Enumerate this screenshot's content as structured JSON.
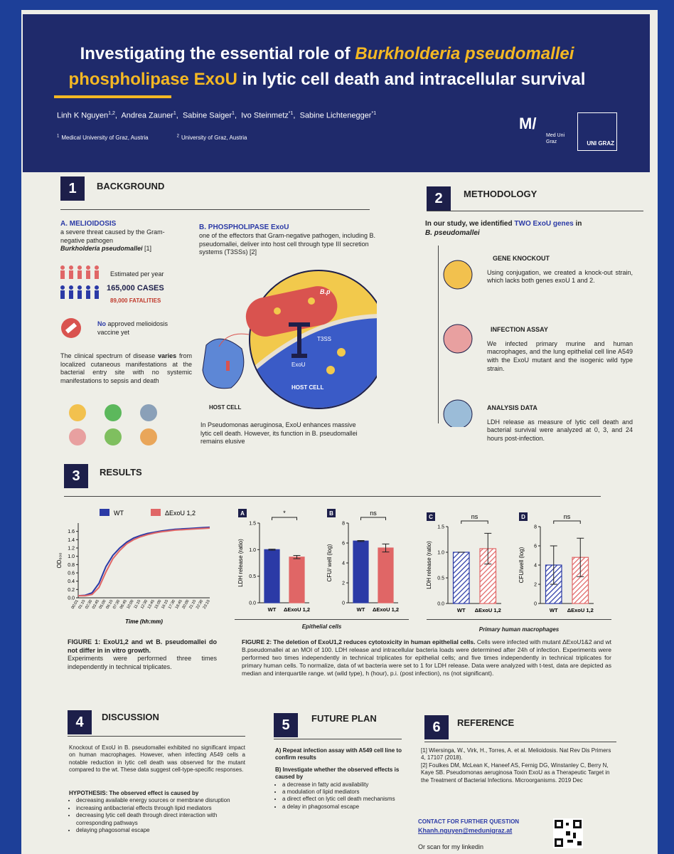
{
  "header": {
    "title_a": "Investigating the essential role of ",
    "title_b": "Burkholderia pseudomallei",
    "title_c": "phospholipase ExoU",
    "title_d": " in lytic cell death and intracellular survival",
    "authors": [
      {
        "name": "Linh K Nguyen",
        "sup": "1,2"
      },
      {
        "name": "Andrea Zauner",
        "sup": "1"
      },
      {
        "name": "Sabine Saiger",
        "sup": "1"
      },
      {
        "name": "Ivo Steinmetz",
        "sup": "*1"
      },
      {
        "name": "Sabine Lichtenegger",
        "sup": "*1"
      }
    ],
    "affiliations": [
      {
        "sup": "1",
        "text": "Medical University of Graz, Austria"
      },
      {
        "sup": "2",
        "text": "University of Graz, Austria"
      }
    ],
    "logos": [
      "Med Uni Graz",
      "UNI GRAZ"
    ]
  },
  "background": {
    "number": "1",
    "heading": "BACKGROUND",
    "a_title": "A. MELIOIDOSIS",
    "a_text": "a severe threat caused by the Gram-negative pathogen",
    "a_pathogen": "Burkholderia pseudomallei",
    "a_ref": " [1]",
    "estimate": "Estimated per year",
    "cases": "165,000 CASES",
    "fatalities": "89,000 FATALITIES",
    "vaccine_no": "No",
    "vaccine_rest": " approved melioidosis vaccine yet",
    "spectrum_1": "The clinical spectrum of disease ",
    "spectrum_bold": "varies",
    "spectrum_2": " from localized cutaneous manifestations at the bacterial entry site with no systemic manifestations to sepsis and death",
    "b_title": "B. PHOSPHOLIPASE ExoU",
    "b_text": "one of the effectors that Gram-negative pathogen, including B. pseudomallei, deliver into host cell through type III secretion systems (T3SSs) [2]",
    "fig_labels": [
      "B.p",
      "T3SS",
      "ExoU",
      "HOST CELL",
      "HOST CELL"
    ],
    "b_caption": "In Pseudomonas aeruginosa, ExoU enhances massive lytic cell death. However, its function in B. pseudomallei remains elusive"
  },
  "methodology": {
    "number": "2",
    "heading": "METHODOLOGY",
    "intro_1": "In our study, we identified ",
    "intro_hl": "TWO ExoU genes",
    "intro_2": " in ",
    "intro_3": "B. pseudomallei",
    "steps": [
      {
        "title": "GENE KNOCKOUT",
        "text": "Using conjugation, we created a knock-out strain, which lacks both genes exoU 1 and 2."
      },
      {
        "title": "INFECTION ASSAY",
        "text": "We infected primary murine and human macrophages, and the lung epithelial cell line A549 with the ExoU mutant and the isogenic wild type strain."
      },
      {
        "title": "ANALYSIS DATA",
        "text": "LDH release as measure of lytic cell death and bacterial survival were analyzed at 0, 3, and 24 hours post-infection."
      }
    ]
  },
  "results": {
    "number": "3",
    "heading": "RESULTS",
    "group_epithelial": "Epithelial cells",
    "group_macrophages": "Primary human macrophages",
    "fig1_title": "FIGURE 1: ExoU1,2 and wt B. pseudomallei do not differ in in vitro growth.",
    "fig1_text": "Experiments were performed three times independently in technical triplicates.",
    "fig2_title": "FIGURE 2: The deletion of ExoU1,2 reduces cytotoxicity in human epithelial cells.",
    "fig2_text": " Cells were infected with mutant ΔExoU1&2 and wt B.pseudomallei at an MOI of 100. LDH release and intracellular bacteria loads were determined after 24h of infection. Experiments were performed two times independently in technical triplicates for epithelial cells; and five times independently in technical triplicates for primary human cells. To normalize, data of wt bacteria were set to 1 for LDH release. Data were analyzed with t-test, data are depicted as median and interquartile range. wt (wild type), h (hour), p.i. (post infection), ns (not significant)."
  },
  "chart_data": [
    {
      "type": "line",
      "xlabel": "Time (hh:mm)",
      "ylabel": "OD₆₀₀",
      "categories": [
        "00:01",
        "01:15",
        "02:30",
        "03:45",
        "05:00",
        "06:15",
        "07:30",
        "08:45",
        "10:00",
        "11:15",
        "12:30",
        "13:45",
        "15:00",
        "16:15",
        "17:30",
        "18:45",
        "20:00",
        "21:15",
        "22:30",
        "23:15"
      ],
      "ylim": [
        0,
        1.8
      ],
      "yticks": [
        {
          "value": 0,
          "label": "0.0"
        },
        {
          "value": 0.2,
          "label": "0.2"
        },
        {
          "value": 0.4,
          "label": "0.4"
        },
        {
          "value": 0.6,
          "label": "0.6"
        },
        {
          "value": 0.8,
          "label": "0.8"
        },
        {
          "value": 1,
          "label": "1.0"
        },
        {
          "value": 1.2,
          "label": "1.2"
        },
        {
          "value": 1.4,
          "label": "1.4"
        },
        {
          "value": 1.6,
          "label": "1.6"
        }
      ],
      "series": [
        {
          "name": "WT",
          "color": "#2b3aa6",
          "values": [
            0.05,
            0.06,
            0.12,
            0.35,
            0.75,
            1.02,
            1.2,
            1.34,
            1.44,
            1.5,
            1.55,
            1.58,
            1.61,
            1.63,
            1.65,
            1.66,
            1.67,
            1.68,
            1.69,
            1.7
          ]
        },
        {
          "name": "ΔExoU 1,2",
          "color": "#e06666",
          "values": [
            0.05,
            0.05,
            0.08,
            0.25,
            0.62,
            0.94,
            1.14,
            1.3,
            1.4,
            1.47,
            1.52,
            1.56,
            1.59,
            1.61,
            1.63,
            1.64,
            1.65,
            1.66,
            1.67,
            1.68
          ]
        }
      ]
    },
    {
      "type": "bar",
      "panel": "A",
      "ylabel": "LDH release (ratio)",
      "categories": [
        "WT",
        "ΔExoU 1,2"
      ],
      "values": [
        1.0,
        0.86
      ],
      "errors": [
        0.01,
        0.03
      ],
      "colors": [
        "#2b3aa6",
        "#e06666"
      ],
      "hatched": false,
      "significance": "*",
      "ylim": [
        0,
        1.5
      ],
      "yticks": [
        {
          "value": 0,
          "label": "0.0"
        },
        {
          "value": 0.5,
          "label": "0.5"
        },
        {
          "value": 1,
          "label": "1.0"
        },
        {
          "value": 1.5,
          "label": "1.5"
        }
      ]
    },
    {
      "type": "bar",
      "panel": "B",
      "ylabel": "CFU/ well (log)",
      "categories": [
        "WT",
        "ΔExoU 1,2"
      ],
      "values": [
        6.2,
        5.5
      ],
      "errors": [
        0.05,
        0.4
      ],
      "colors": [
        "#2b3aa6",
        "#e06666"
      ],
      "hatched": false,
      "significance": "ns",
      "ylim": [
        0,
        8
      ],
      "yticks": [
        0,
        2,
        4,
        6,
        8
      ]
    },
    {
      "type": "bar",
      "panel": "C",
      "ylabel": "LDH release (ratio)",
      "categories": [
        "WT",
        "ΔExoU 1,2"
      ],
      "values": [
        1.0,
        1.07
      ],
      "errors": [
        0.0,
        0.3
      ],
      "colors": [
        "#2b3aa6",
        "#e06666"
      ],
      "hatched": true,
      "significance": "ns",
      "ylim": [
        0,
        1.5
      ],
      "yticks": [
        {
          "value": 0,
          "label": "0.0"
        },
        {
          "value": 0.5,
          "label": "0.5"
        },
        {
          "value": 1,
          "label": "1.0"
        },
        {
          "value": 1.5,
          "label": "1.5"
        }
      ]
    },
    {
      "type": "bar",
      "panel": "D",
      "ylabel": "CFU/well (log)",
      "categories": [
        "WT",
        "ΔExoU 1,2"
      ],
      "values": [
        4.0,
        4.8
      ],
      "errors": [
        2.0,
        2.0
      ],
      "colors": [
        "#2b3aa6",
        "#e06666"
      ],
      "hatched": true,
      "significance": "ns",
      "ylim": [
        0,
        8
      ],
      "yticks": [
        0,
        2,
        4,
        6,
        8
      ]
    }
  ],
  "discussion": {
    "number": "4",
    "heading": "DISCUSSION",
    "text": "Knockout of ExoU in B. pseudomallei exhibited no significant impact on human macrophages. However, when infecting A549 cells a notable reduction in lytic cell death was observed for the mutant compared to the wt. These data suggest cell-type-specific responses.",
    "hypothesis": "HYPOTHESIS: The observed effect is caused by",
    "items": [
      "decreasing available energy sources or membrane disruption",
      "increasing antibacterial effects through lipid mediators",
      "decreasing lytic cell death through direct interaction with corresponding pathways",
      "delaying phagosomal escape"
    ]
  },
  "future": {
    "number": "5",
    "heading": "FUTURE PLAN",
    "a": "A) Repeat infection assay with A549 cell line to confirm results",
    "b": "B) Investigate whether the observed effects is caused by",
    "items": [
      "a decrease in fatty acid availability",
      "a modulation of lipid mediators",
      "a direct effect on lytic cell death mechanisms",
      "a delay in phagosomal escape"
    ]
  },
  "reference": {
    "number": "6",
    "heading": "REFERENCE",
    "refs": [
      "[1] Wiersinga, W., Virk, H., Torres, A. et al. Melioidosis. Nat Rev Dis Primers 4, 17107 (2018).",
      "[2] Foulkes DM, McLean K, Haneef AS, Fernig DG, Winstanley C, Berry N, Kaye SB. Pseudomonas aeruginosa Toxin ExoU as a Therapeutic Target in the Treatment of Bacterial Infections. Microorganisms. 2019 Dec"
    ],
    "contact_title": "CONTACT FOR FURTHER QUESTION",
    "email": "Khanh.nguyen@medunigraz.at",
    "scan": "Or scan for my linkedin"
  }
}
